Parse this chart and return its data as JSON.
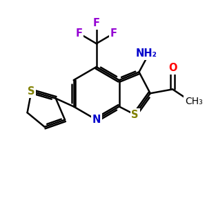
{
  "bg_color": "#ffffff",
  "bond_color": "#000000",
  "bond_width": 1.8,
  "dbo": 0.08,
  "atom_colors": {
    "S": "#808000",
    "N": "#0000cc",
    "O": "#ff0000",
    "F": "#9400D3",
    "NH2": "#0000cc",
    "C": "#000000"
  },
  "fs": 10.5
}
